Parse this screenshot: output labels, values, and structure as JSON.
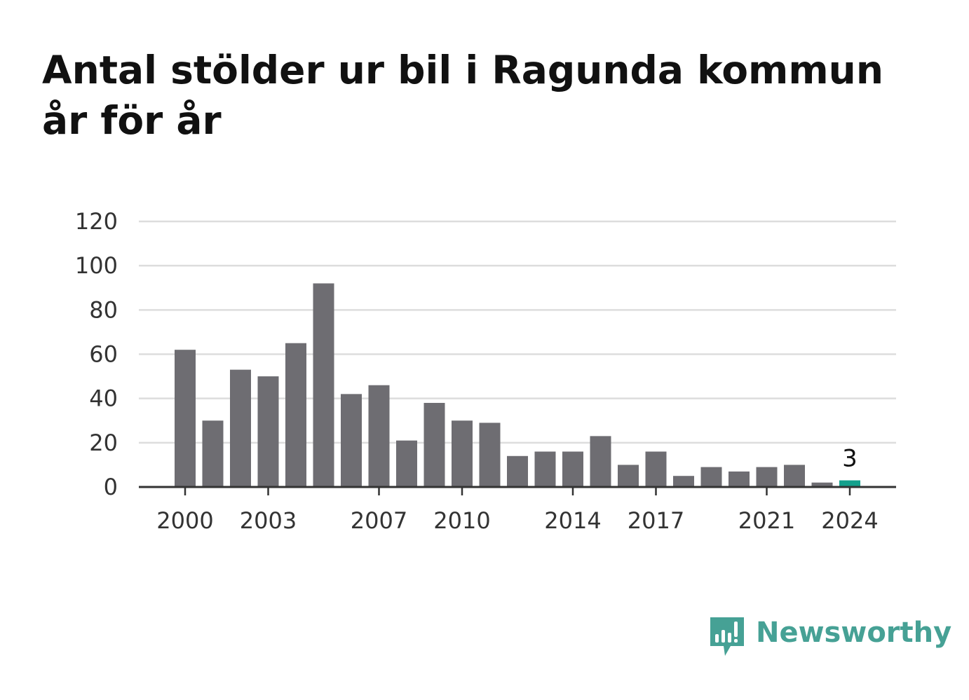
{
  "title": "Antal stölder ur bil i Ragunda kommun år för år",
  "brand": {
    "name": "Newsworthy",
    "color": "#46a195",
    "icon": "bar-chart-speech-bubble-icon"
  },
  "colors": {
    "bar": "#6e6d72",
    "highlight": "#13a08c",
    "grid": "#dddddd",
    "axis": "#333333"
  },
  "chart_data": {
    "type": "bar",
    "title": "Antal stölder ur bil i Ragunda kommun år för år",
    "xlabel": "",
    "ylabel": "",
    "categories": [
      2000,
      2001,
      2002,
      2003,
      2004,
      2005,
      2006,
      2007,
      2008,
      2009,
      2010,
      2011,
      2012,
      2013,
      2014,
      2015,
      2016,
      2017,
      2018,
      2019,
      2020,
      2021,
      2022,
      2023,
      2024
    ],
    "values": [
      62,
      30,
      53,
      50,
      65,
      92,
      42,
      46,
      21,
      38,
      30,
      29,
      14,
      16,
      16,
      23,
      10,
      16,
      5,
      9,
      7,
      9,
      10,
      2,
      3
    ],
    "ylim": [
      0,
      120
    ],
    "yticks": [
      0,
      20,
      40,
      60,
      80,
      100,
      120
    ],
    "xtick_labels": [
      "2000",
      "2003",
      "2007",
      "2010",
      "2014",
      "2017",
      "2021",
      "2024"
    ],
    "highlight": {
      "category": 2024,
      "label": "3"
    },
    "grid": true,
    "legend": "none"
  }
}
